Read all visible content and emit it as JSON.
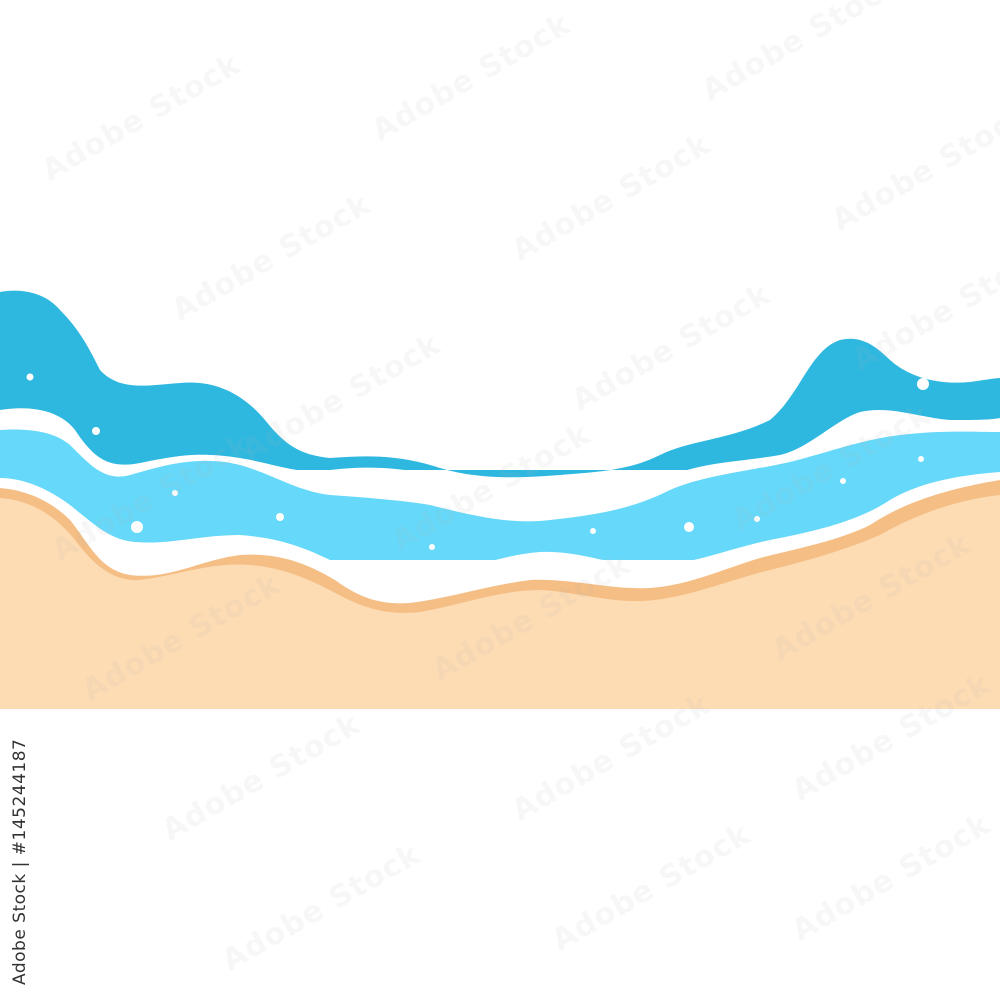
{
  "image": {
    "stock_id_text": "Adobe Stock | #145244187",
    "watermark_text": "Adobe Stock",
    "colors": {
      "background": "#ffffff",
      "deep_water": "#2eb8e0",
      "shallow_water": "#66d8fa",
      "foam": "#ffffff",
      "wet_sand": "#f5be85",
      "sand": "#fddcb4",
      "bubbles": "#ffffff"
    }
  }
}
